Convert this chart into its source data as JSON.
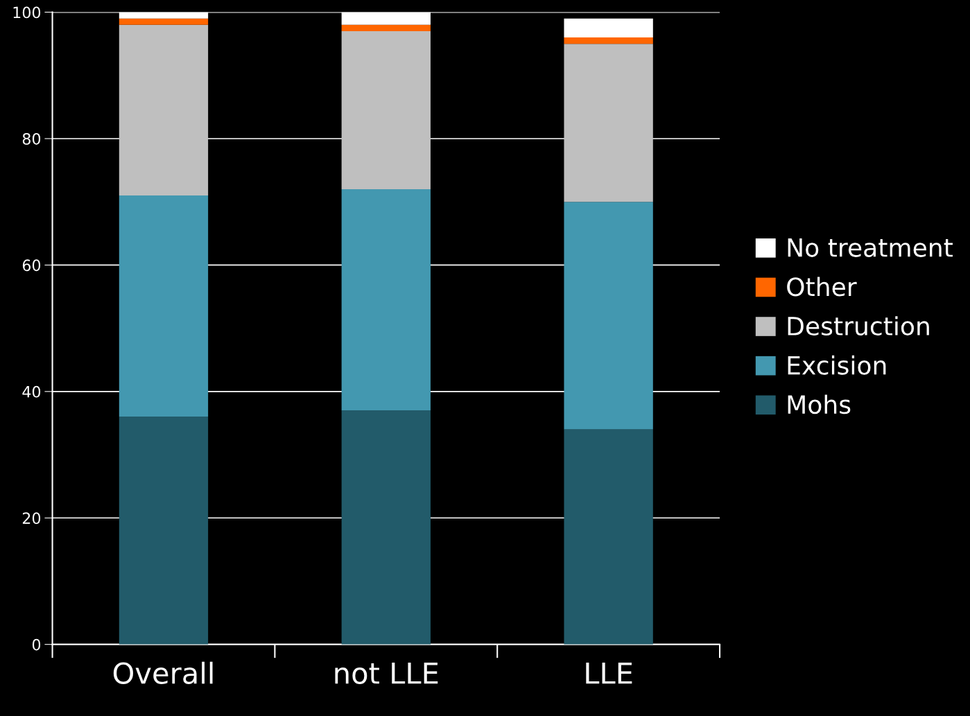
{
  "chart_data": {
    "type": "bar",
    "stacked": true,
    "categories": [
      "Overall",
      "not LLE",
      "LLE"
    ],
    "series": [
      {
        "name": "Mohs",
        "color": "#225b6a",
        "values": [
          36,
          37,
          34
        ]
      },
      {
        "name": "Excision",
        "color": "#4398b0",
        "values": [
          35,
          35,
          36
        ]
      },
      {
        "name": "Destruction",
        "color": "#bfbfbf",
        "values": [
          27,
          25,
          25
        ]
      },
      {
        "name": "Other",
        "color": "#ff6600",
        "values": [
          1,
          1,
          1
        ]
      },
      {
        "name": "No treatment",
        "color": "#ffffff",
        "values": [
          1,
          2,
          3
        ]
      }
    ],
    "ylim": [
      0,
      100
    ],
    "yticks": [
      0,
      20,
      40,
      60,
      80,
      100
    ],
    "grid": "y",
    "legend": "right"
  }
}
